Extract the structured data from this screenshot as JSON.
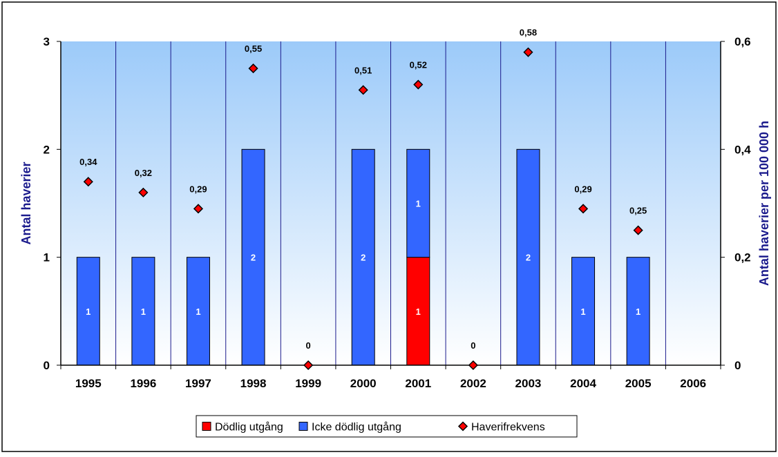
{
  "chart_data": {
    "type": "bar",
    "categories": [
      "1995",
      "1996",
      "1997",
      "1998",
      "1999",
      "2000",
      "2001",
      "2002",
      "2003",
      "2004",
      "2005",
      "2006"
    ],
    "series": [
      {
        "name": "Dödlig utgång",
        "kind": "bar",
        "axis": "left",
        "color": "#ff0000",
        "values": [
          0,
          0,
          0,
          0,
          0,
          0,
          1,
          0,
          0,
          0,
          0,
          0
        ],
        "data_labels": [
          "",
          "",
          "",
          "",
          "",
          "",
          "1",
          "",
          "",
          "",
          "",
          ""
        ]
      },
      {
        "name": "Icke dödlig utgång",
        "kind": "bar",
        "axis": "left",
        "color": "#3366ff",
        "values": [
          1,
          1,
          1,
          2,
          0,
          2,
          1,
          0,
          2,
          1,
          1,
          0
        ],
        "data_labels": [
          "1",
          "1",
          "1",
          "2",
          "",
          "2",
          "1",
          "",
          "2",
          "1",
          "1",
          ""
        ]
      },
      {
        "name": "Haverifrekvens",
        "kind": "scatter",
        "axis": "right",
        "color": "#ff0000",
        "values": [
          0.34,
          0.32,
          0.29,
          0.55,
          0,
          0.51,
          0.52,
          0,
          0.58,
          0.29,
          0.25,
          null
        ],
        "data_labels": [
          "0,34",
          "0,32",
          "0,29",
          "0,55",
          "0",
          "0,51",
          "0,52",
          "0",
          "0,58",
          "0,29",
          "0,25",
          ""
        ]
      }
    ],
    "ylabel": "Antal haverier",
    "y2label": "Antal haverier per 100 000 h",
    "ylim": [
      0,
      3
    ],
    "y2lim": [
      0,
      0.6
    ],
    "yticks": [
      "0",
      "1",
      "2",
      "3"
    ],
    "y2ticks": [
      "0",
      "0,2",
      "0,4",
      "0,6"
    ],
    "legend_position": "bottom",
    "grid": "vertical category separators",
    "colors": {
      "plot_top": "#ffffff",
      "plot_bottom": "#9ccaf9",
      "axis_title": "#1a1a8c",
      "separator": "#1a1a8c"
    }
  }
}
